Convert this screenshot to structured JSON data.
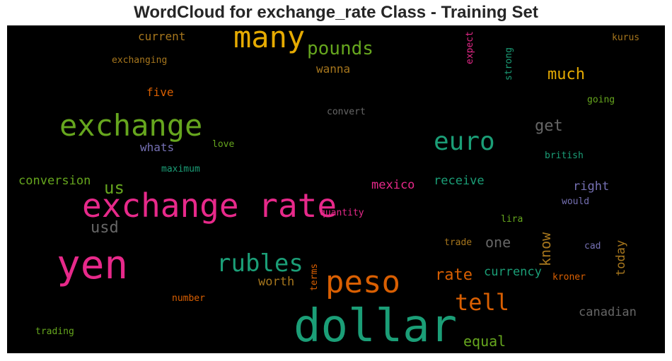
{
  "title": "WordCloud for exchange_rate Class - Training Set",
  "words": {
    "dollar": "dollar",
    "exchange_rate": "exchange rate",
    "yen": "yen",
    "exchange": "exchange",
    "many": "many",
    "peso": "peso",
    "euro": "euro",
    "rubles": "rubles",
    "tell": "tell",
    "pounds": "pounds",
    "much": "much",
    "us": "us",
    "usd": "usd",
    "get": "get",
    "rate": "rate",
    "one": "one",
    "know": "know",
    "equal": "equal",
    "worth": "worth",
    "currency": "currency",
    "conversion": "conversion",
    "mexico": "mexico",
    "receive": "receive",
    "right": "right",
    "canadian": "canadian",
    "today": "today",
    "wanna": "wanna",
    "current": "current",
    "five": "five",
    "whats": "whats",
    "convert": "convert",
    "exchanging": "exchanging",
    "expect": "expect",
    "strong": "strong",
    "kurus": "kurus",
    "going": "going",
    "love": "love",
    "maximum": "maximum",
    "british": "british",
    "quantity": "quantity",
    "would": "would",
    "lira": "lira",
    "trade": "trade",
    "cad": "cad",
    "kroner": "kroner",
    "terms": "terms",
    "number": "number",
    "trading": "trading"
  },
  "colors": {
    "teal": "#1b9e77",
    "orange": "#d95f02",
    "purple": "#7570b3",
    "pink": "#e7298a",
    "green": "#66a61e",
    "gold": "#e6ab02",
    "brown": "#a6761d",
    "grey": "#666666"
  }
}
